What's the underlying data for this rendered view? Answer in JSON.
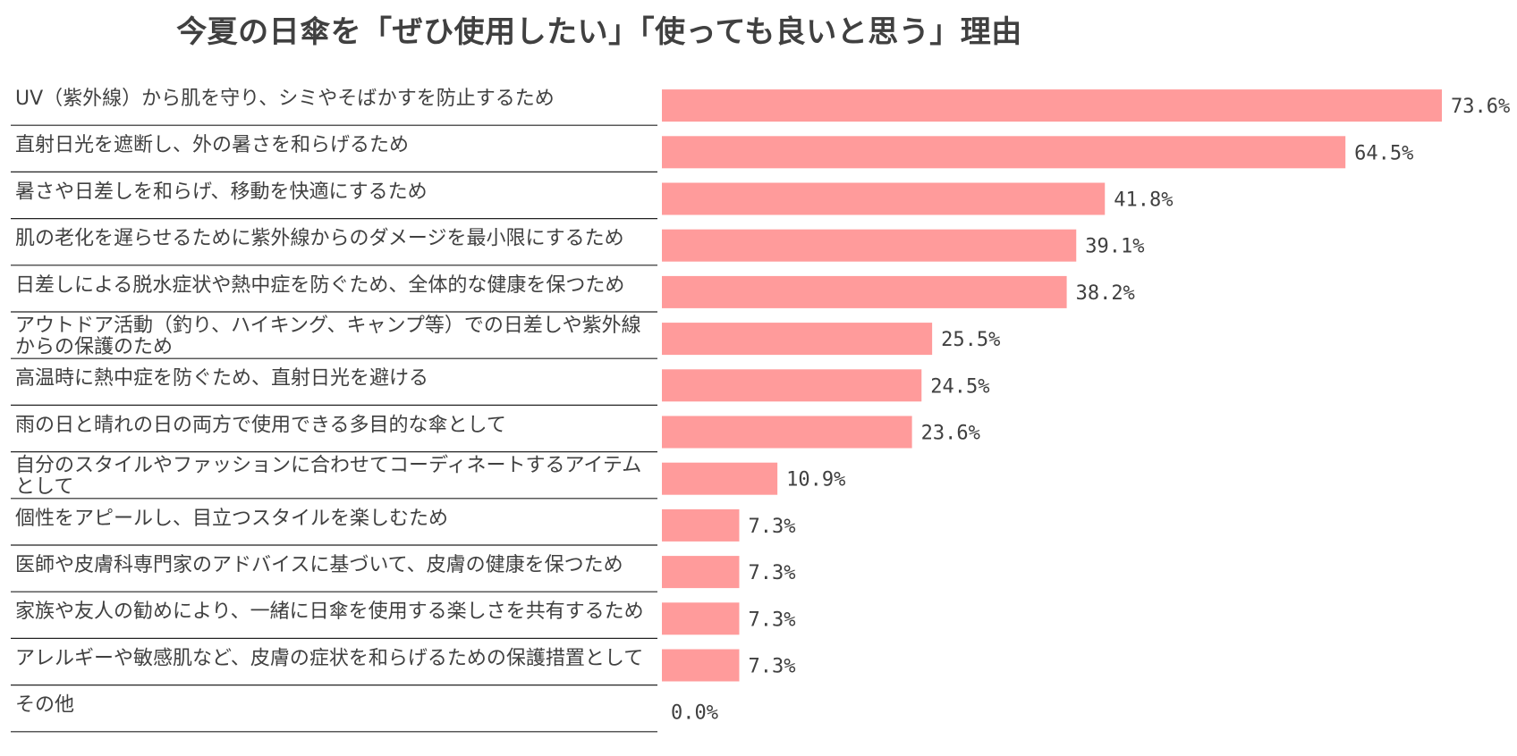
{
  "chart_data": {
    "type": "bar",
    "orientation": "horizontal",
    "title": "今夏の日傘を「ぜひ使用したい」「使っても良いと思う」理由",
    "categories": [
      "UV（紫外線）から肌を守り、シミやそばかすを防止するため",
      "直射日光を遮断し、外の暑さを和らげるため",
      "暑さや日差しを和らげ、移動を快適にするため",
      "肌の老化を遅らせるために紫外線からのダメージを最小限にするため",
      "日差しによる脱水症状や熱中症を防ぐため、全体的な健康を保つため",
      "アウトドア活動（釣り、ハイキング、キャンプ等）での日差しや紫外線からの保護のため",
      "高温時に熱中症を防ぐため、直射日光を避ける",
      "雨の日と晴れの日の両方で使用できる多目的な傘として",
      "自分のスタイルやファッションに合わせてコーディネートするアイテムとして",
      "個性をアピールし、目立つスタイルを楽しむため",
      "医師や皮膚科専門家のアドバイスに基づいて、皮膚の健康を保つため",
      "家族や友人の勧めにより、一緒に日傘を使用する楽しさを共有するため",
      "アレルギーや敏感肌など、皮膚の症状を和らげるための保護措置として",
      "その他"
    ],
    "values": [
      73.6,
      64.5,
      41.8,
      39.1,
      38.2,
      25.5,
      24.5,
      23.6,
      10.9,
      7.3,
      7.3,
      7.3,
      7.3,
      0.0
    ],
    "value_labels": [
      "73.6%",
      "64.5%",
      "41.8%",
      "39.1%",
      "38.2%",
      "25.5%",
      "24.5%",
      "23.6%",
      "10.9%",
      "7.3%",
      "7.3%",
      "7.3%",
      "7.3%",
      "0.0%"
    ],
    "xlim": [
      0,
      80
    ],
    "bar_color": "#ff9b9b",
    "grid": false,
    "legend": "none"
  }
}
